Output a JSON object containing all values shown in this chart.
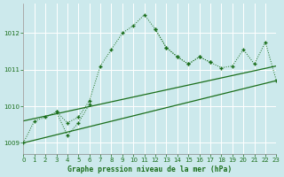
{
  "title": "Graphe pression niveau de la mer (hPa)",
  "background_color": "#cce9ec",
  "grid_color": "#ffffff",
  "line_color": "#1a6e1a",
  "series_main": {
    "x": [
      0,
      1,
      2,
      3,
      4,
      5,
      6,
      7,
      8,
      9,
      10,
      11,
      12,
      13,
      14,
      15,
      16,
      17
    ],
    "y": [
      1009.0,
      1009.6,
      1009.7,
      1009.85,
      1009.55,
      1009.7,
      1010.15,
      1011.1,
      1011.55,
      1012.0,
      1012.2,
      1012.5,
      1012.1,
      1011.6,
      1011.35,
      1011.15,
      1011.35,
      1011.2
    ]
  },
  "series_zigzag": {
    "x": [
      3,
      4,
      5,
      6
    ],
    "y": [
      1009.85,
      1009.2,
      1009.55,
      1010.05
    ]
  },
  "series_linear1": {
    "x": [
      0,
      23
    ],
    "y": [
      1009.6,
      1011.1
    ]
  },
  "series_linear2": {
    "x": [
      0,
      23
    ],
    "y": [
      1009.0,
      1010.7
    ]
  },
  "series_right": {
    "x": [
      12,
      13,
      14,
      15,
      16,
      17,
      18,
      19,
      20,
      21,
      22,
      23
    ],
    "y": [
      1012.1,
      1011.6,
      1011.35,
      1011.15,
      1011.35,
      1011.2,
      1011.05,
      1011.1,
      1011.55,
      1011.15,
      1011.75,
      1010.7
    ]
  },
  "ylim": [
    1008.7,
    1012.8
  ],
  "yticks": [
    1009,
    1010,
    1011,
    1012
  ],
  "xlim": [
    0,
    23
  ],
  "xticks": [
    0,
    1,
    2,
    3,
    4,
    5,
    6,
    7,
    8,
    9,
    10,
    11,
    12,
    13,
    14,
    15,
    16,
    17,
    18,
    19,
    20,
    21,
    22,
    23
  ]
}
